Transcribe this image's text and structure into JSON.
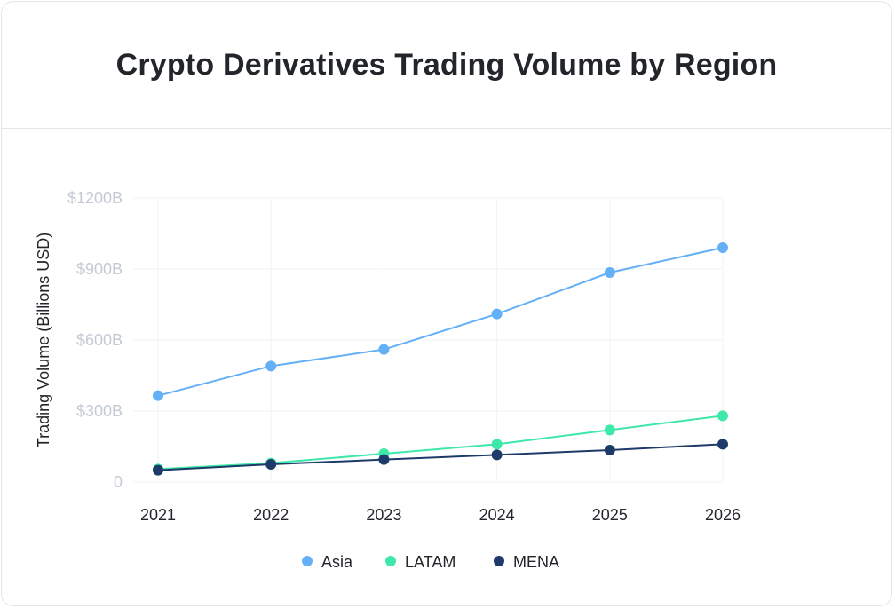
{
  "chart_data": {
    "type": "line",
    "title": "Crypto Derivatives Trading Volume by Region",
    "xlabel": "",
    "ylabel": "Trading Volume (Billions USD)",
    "categories": [
      "2021",
      "2022",
      "2023",
      "2024",
      "2025",
      "2026"
    ],
    "ylim": [
      0,
      1200
    ],
    "yticks": [
      0,
      300,
      600,
      900,
      1200
    ],
    "ytick_labels": [
      "0",
      "$300B",
      "$600B",
      "$900B",
      "$1200B"
    ],
    "grid": true,
    "legend_position": "bottom",
    "series": [
      {
        "name": "Asia",
        "color": "#64b0f7",
        "values": [
          365,
          490,
          560,
          710,
          885,
          990
        ]
      },
      {
        "name": "LATAM",
        "color": "#3de8a8",
        "values": [
          55,
          80,
          120,
          160,
          220,
          280
        ]
      },
      {
        "name": "MENA",
        "color": "#1e3a68",
        "values": [
          50,
          75,
          95,
          115,
          135,
          160
        ]
      }
    ]
  }
}
